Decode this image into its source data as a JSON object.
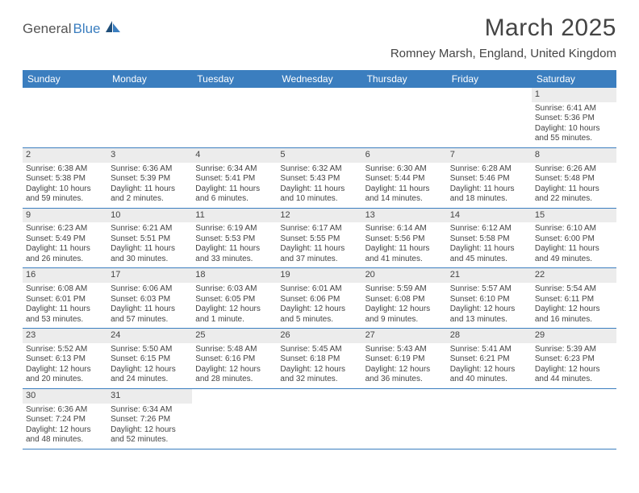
{
  "logo": {
    "part1": "General",
    "part2": "Blue"
  },
  "title": "March 2025",
  "location": "Romney Marsh, England, United Kingdom",
  "colors": {
    "header_bg": "#3b7ebf",
    "header_text": "#ffffff",
    "daynum_bg": "#ececec",
    "border": "#3b7ebf",
    "body_text": "#444444"
  },
  "dayHeaders": [
    "Sunday",
    "Monday",
    "Tuesday",
    "Wednesday",
    "Thursday",
    "Friday",
    "Saturday"
  ],
  "weeks": [
    [
      null,
      null,
      null,
      null,
      null,
      null,
      {
        "num": "1",
        "sunrise": "Sunrise: 6:41 AM",
        "sunset": "Sunset: 5:36 PM",
        "daylight": "Daylight: 10 hours and 55 minutes."
      }
    ],
    [
      {
        "num": "2",
        "sunrise": "Sunrise: 6:38 AM",
        "sunset": "Sunset: 5:38 PM",
        "daylight": "Daylight: 10 hours and 59 minutes."
      },
      {
        "num": "3",
        "sunrise": "Sunrise: 6:36 AM",
        "sunset": "Sunset: 5:39 PM",
        "daylight": "Daylight: 11 hours and 2 minutes."
      },
      {
        "num": "4",
        "sunrise": "Sunrise: 6:34 AM",
        "sunset": "Sunset: 5:41 PM",
        "daylight": "Daylight: 11 hours and 6 minutes."
      },
      {
        "num": "5",
        "sunrise": "Sunrise: 6:32 AM",
        "sunset": "Sunset: 5:43 PM",
        "daylight": "Daylight: 11 hours and 10 minutes."
      },
      {
        "num": "6",
        "sunrise": "Sunrise: 6:30 AM",
        "sunset": "Sunset: 5:44 PM",
        "daylight": "Daylight: 11 hours and 14 minutes."
      },
      {
        "num": "7",
        "sunrise": "Sunrise: 6:28 AM",
        "sunset": "Sunset: 5:46 PM",
        "daylight": "Daylight: 11 hours and 18 minutes."
      },
      {
        "num": "8",
        "sunrise": "Sunrise: 6:26 AM",
        "sunset": "Sunset: 5:48 PM",
        "daylight": "Daylight: 11 hours and 22 minutes."
      }
    ],
    [
      {
        "num": "9",
        "sunrise": "Sunrise: 6:23 AM",
        "sunset": "Sunset: 5:49 PM",
        "daylight": "Daylight: 11 hours and 26 minutes."
      },
      {
        "num": "10",
        "sunrise": "Sunrise: 6:21 AM",
        "sunset": "Sunset: 5:51 PM",
        "daylight": "Daylight: 11 hours and 30 minutes."
      },
      {
        "num": "11",
        "sunrise": "Sunrise: 6:19 AM",
        "sunset": "Sunset: 5:53 PM",
        "daylight": "Daylight: 11 hours and 33 minutes."
      },
      {
        "num": "12",
        "sunrise": "Sunrise: 6:17 AM",
        "sunset": "Sunset: 5:55 PM",
        "daylight": "Daylight: 11 hours and 37 minutes."
      },
      {
        "num": "13",
        "sunrise": "Sunrise: 6:14 AM",
        "sunset": "Sunset: 5:56 PM",
        "daylight": "Daylight: 11 hours and 41 minutes."
      },
      {
        "num": "14",
        "sunrise": "Sunrise: 6:12 AM",
        "sunset": "Sunset: 5:58 PM",
        "daylight": "Daylight: 11 hours and 45 minutes."
      },
      {
        "num": "15",
        "sunrise": "Sunrise: 6:10 AM",
        "sunset": "Sunset: 6:00 PM",
        "daylight": "Daylight: 11 hours and 49 minutes."
      }
    ],
    [
      {
        "num": "16",
        "sunrise": "Sunrise: 6:08 AM",
        "sunset": "Sunset: 6:01 PM",
        "daylight": "Daylight: 11 hours and 53 minutes."
      },
      {
        "num": "17",
        "sunrise": "Sunrise: 6:06 AM",
        "sunset": "Sunset: 6:03 PM",
        "daylight": "Daylight: 11 hours and 57 minutes."
      },
      {
        "num": "18",
        "sunrise": "Sunrise: 6:03 AM",
        "sunset": "Sunset: 6:05 PM",
        "daylight": "Daylight: 12 hours and 1 minute."
      },
      {
        "num": "19",
        "sunrise": "Sunrise: 6:01 AM",
        "sunset": "Sunset: 6:06 PM",
        "daylight": "Daylight: 12 hours and 5 minutes."
      },
      {
        "num": "20",
        "sunrise": "Sunrise: 5:59 AM",
        "sunset": "Sunset: 6:08 PM",
        "daylight": "Daylight: 12 hours and 9 minutes."
      },
      {
        "num": "21",
        "sunrise": "Sunrise: 5:57 AM",
        "sunset": "Sunset: 6:10 PM",
        "daylight": "Daylight: 12 hours and 13 minutes."
      },
      {
        "num": "22",
        "sunrise": "Sunrise: 5:54 AM",
        "sunset": "Sunset: 6:11 PM",
        "daylight": "Daylight: 12 hours and 16 minutes."
      }
    ],
    [
      {
        "num": "23",
        "sunrise": "Sunrise: 5:52 AM",
        "sunset": "Sunset: 6:13 PM",
        "daylight": "Daylight: 12 hours and 20 minutes."
      },
      {
        "num": "24",
        "sunrise": "Sunrise: 5:50 AM",
        "sunset": "Sunset: 6:15 PM",
        "daylight": "Daylight: 12 hours and 24 minutes."
      },
      {
        "num": "25",
        "sunrise": "Sunrise: 5:48 AM",
        "sunset": "Sunset: 6:16 PM",
        "daylight": "Daylight: 12 hours and 28 minutes."
      },
      {
        "num": "26",
        "sunrise": "Sunrise: 5:45 AM",
        "sunset": "Sunset: 6:18 PM",
        "daylight": "Daylight: 12 hours and 32 minutes."
      },
      {
        "num": "27",
        "sunrise": "Sunrise: 5:43 AM",
        "sunset": "Sunset: 6:19 PM",
        "daylight": "Daylight: 12 hours and 36 minutes."
      },
      {
        "num": "28",
        "sunrise": "Sunrise: 5:41 AM",
        "sunset": "Sunset: 6:21 PM",
        "daylight": "Daylight: 12 hours and 40 minutes."
      },
      {
        "num": "29",
        "sunrise": "Sunrise: 5:39 AM",
        "sunset": "Sunset: 6:23 PM",
        "daylight": "Daylight: 12 hours and 44 minutes."
      }
    ],
    [
      {
        "num": "30",
        "sunrise": "Sunrise: 6:36 AM",
        "sunset": "Sunset: 7:24 PM",
        "daylight": "Daylight: 12 hours and 48 minutes."
      },
      {
        "num": "31",
        "sunrise": "Sunrise: 6:34 AM",
        "sunset": "Sunset: 7:26 PM",
        "daylight": "Daylight: 12 hours and 52 minutes."
      },
      null,
      null,
      null,
      null,
      null
    ]
  ]
}
